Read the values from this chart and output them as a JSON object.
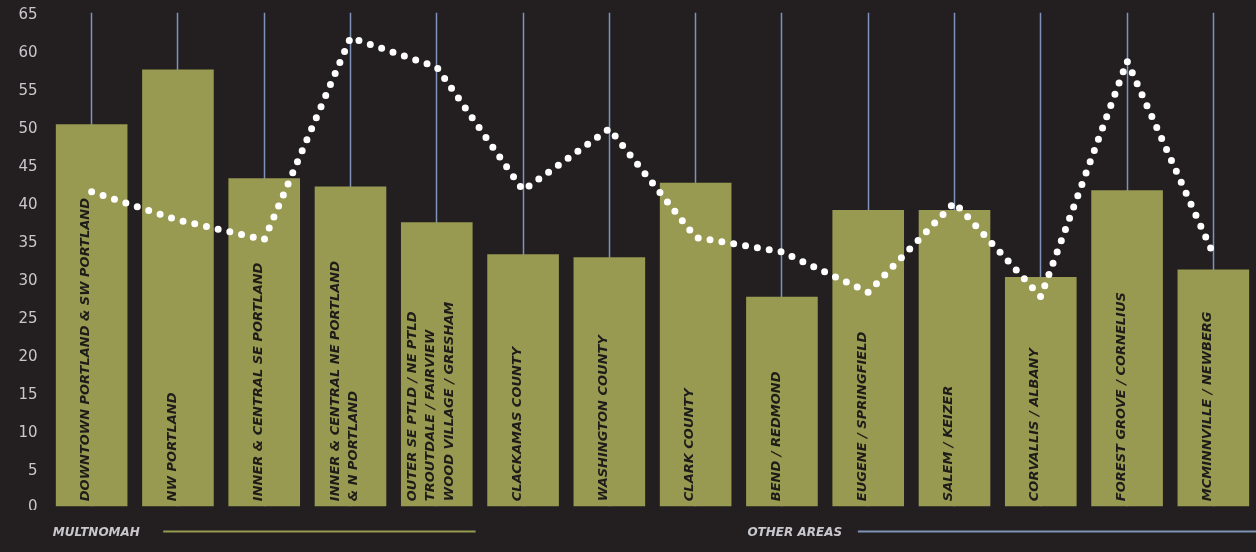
{
  "chart_data": {
    "type": "bar",
    "categories": [
      "DOWNTOWN PORTLAND & SW PORTLAND",
      "NW PORTLAND",
      "INNER & CENTRAL SE PORTLAND",
      "INNER & CENTRAL NE PORTLAND\n& N PORTLAND",
      "OUTER SE PTLD / NE PTLD\nTROUTDALE / FAIRVIEW\nWOOD VILLAGE / GRESHAM",
      "CLACKAMAS COUNTY",
      "WASHINGTON COUNTY",
      "CLARK COUNTY",
      "BEND / REDMOND",
      "EUGENE / SPRINGFIELD",
      "SALEM / KEIZER",
      "CORVALLIS / ALBANY",
      "FOREST GROVE / CORNELIUS",
      "MCMINNVILLE / NEWBERG"
    ],
    "series": [
      {
        "color": "#989a52",
        "values": [
          50.3,
          57.5,
          43.2,
          42.1,
          37.4,
          33.2,
          32.8,
          42.6,
          27.6,
          39.0,
          39.0,
          30.2,
          41.6,
          31.2
        ]
      },
      {
        "type": "line",
        "color": "#ffffff",
        "line_style": "dotted",
        "values": [
          41.4,
          37.7,
          35.1,
          61.7,
          57.8,
          41.6,
          49.7,
          35.4,
          33.5,
          28.2,
          40.0,
          27.6,
          58.6,
          33.2
        ]
      }
    ],
    "ylim": [
      0,
      65
    ],
    "yticks": [
      0,
      5,
      10,
      15,
      20,
      25,
      30,
      35,
      40,
      45,
      50,
      55,
      60,
      65
    ],
    "grid": "x",
    "annotations": [
      "MULTNOMAH",
      "OTHER AREAS"
    ]
  }
}
